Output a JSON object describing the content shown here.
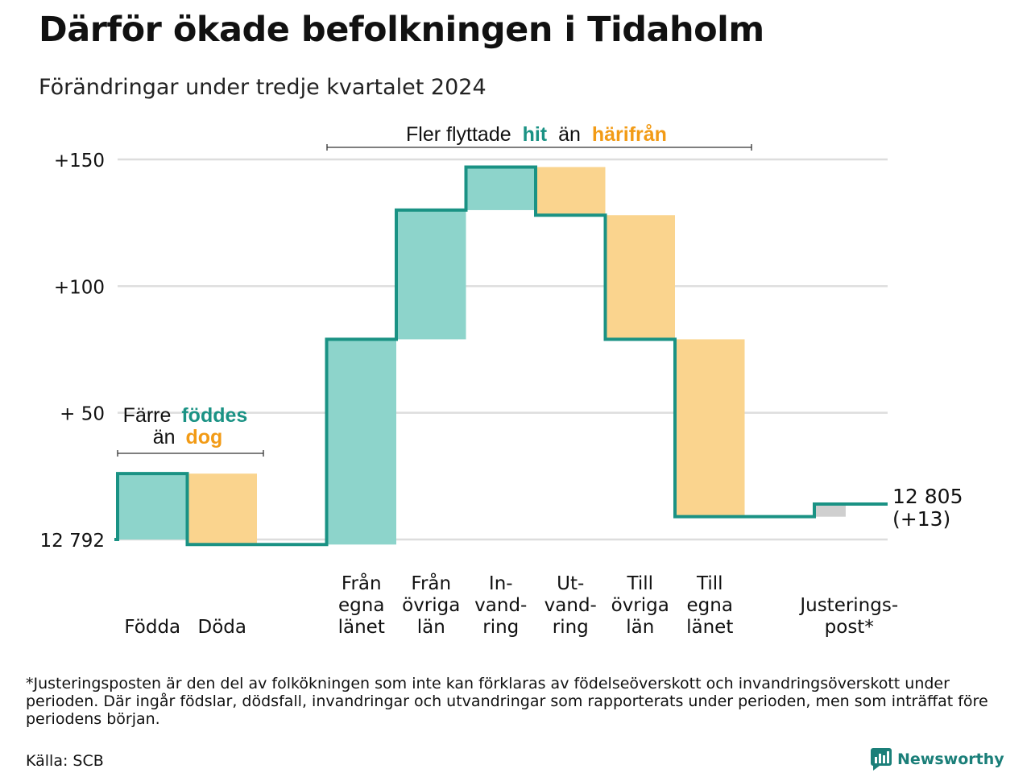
{
  "title": "Därför ökade befolkningen i Tidaholm",
  "subtitle": "Förändringar under tredje kvartalet 2024",
  "footnote": "*Justeringsposten är den del av folkökningen som inte kan förklaras av födelseöverskott och invandringsöverskott under perioden. Där ingår födslar, dödsfall, invandringar och utvandringar som rapporterats under perioden, men som inträffat före periodens början.",
  "source": "Källa: SCB",
  "brand": "Newsworthy",
  "colors": {
    "positive": "#8dd4cb",
    "negative": "#fad48e",
    "line": "#1a9284",
    "adjustment": "#cfcfcf",
    "accent_teal": "#1a9284",
    "accent_orange": "#f29b16",
    "grid": "#dddddd"
  },
  "chart_data": {
    "type": "waterfall",
    "y_ticks": [
      {
        "value": 0,
        "label": "12 792"
      },
      {
        "value": 50,
        "label": "+ 50"
      },
      {
        "value": 100,
        "label": "+100"
      },
      {
        "value": 150,
        "label": "+150"
      }
    ],
    "ylim": [
      -3,
      153
    ],
    "grid": true,
    "steps": [
      {
        "label": [
          "Födda"
        ],
        "change": 26,
        "kind": "positive"
      },
      {
        "label": [
          "Döda"
        ],
        "change": -28,
        "kind": "negative"
      },
      {
        "label": [],
        "change": 0,
        "kind": "none"
      },
      {
        "label": [
          "Från",
          "egna",
          "länet"
        ],
        "change": 81,
        "kind": "positive"
      },
      {
        "label": [
          "Från",
          "övriga",
          "län"
        ],
        "change": 51,
        "kind": "positive"
      },
      {
        "label": [
          "In-",
          "vand-",
          "ring"
        ],
        "change": 17,
        "kind": "positive"
      },
      {
        "label": [
          "Ut-",
          "vand-",
          "ring"
        ],
        "change": -19,
        "kind": "negative"
      },
      {
        "label": [
          "Till",
          "övriga",
          "län"
        ],
        "change": -49,
        "kind": "negative"
      },
      {
        "label": [
          "Till",
          "egna",
          "länet"
        ],
        "change": -70,
        "kind": "negative"
      },
      {
        "label": [],
        "change": 0,
        "kind": "none"
      },
      {
        "label": [
          "Justerings-",
          "post*"
        ],
        "change": 5,
        "kind": "adjustment"
      }
    ],
    "end_label": [
      "12 805",
      "(+13)"
    ],
    "annotations": {
      "births": {
        "line1": "Färre",
        "line1_hl": "föddes",
        "line2": "än",
        "line2_hl": "dog"
      },
      "migration": {
        "pre": "Fler flyttade",
        "hl1": "hit",
        "mid": "än",
        "hl2": "härifrån"
      }
    }
  }
}
